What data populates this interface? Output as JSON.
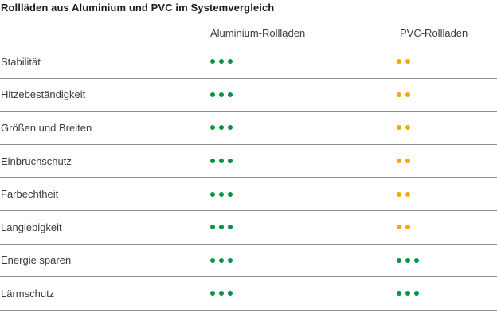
{
  "title": "Rollläden aus Aluminium und PVC im Systemvergleich",
  "colors": {
    "green": "#009640",
    "amber": "#F5A900",
    "rule": "#8f8f8f",
    "text": "#3b3b3b",
    "title": "#1c1c1c"
  },
  "header": {
    "col_aluminium": "Aluminium-Rollladen",
    "col_pvc": "PVC-Rollladen"
  },
  "chart_data": {
    "type": "table",
    "title": "Rollläden aus Aluminium und PVC im Systemvergleich",
    "columns": [
      "Aluminium-Rollladen",
      "PVC-Rollladen"
    ],
    "rating_scale": "dots, max 3 (3 dots = best)",
    "rows": [
      {
        "label": "Stabilität",
        "aluminium": {
          "dots": 3,
          "color": "green"
        },
        "pvc": {
          "dots": 2,
          "color": "amber"
        }
      },
      {
        "label": "Hitzebeständigkeit",
        "aluminium": {
          "dots": 3,
          "color": "green"
        },
        "pvc": {
          "dots": 2,
          "color": "amber"
        }
      },
      {
        "label": "Größen und Breiten",
        "aluminium": {
          "dots": 3,
          "color": "green"
        },
        "pvc": {
          "dots": 2,
          "color": "amber"
        }
      },
      {
        "label": "Einbruchschutz",
        "aluminium": {
          "dots": 3,
          "color": "green"
        },
        "pvc": {
          "dots": 2,
          "color": "amber"
        }
      },
      {
        "label": "Farbechtheit",
        "aluminium": {
          "dots": 3,
          "color": "green"
        },
        "pvc": {
          "dots": 2,
          "color": "amber"
        }
      },
      {
        "label": "Langlebigkeit",
        "aluminium": {
          "dots": 3,
          "color": "green"
        },
        "pvc": {
          "dots": 2,
          "color": "amber"
        }
      },
      {
        "label": "Energie sparen",
        "aluminium": {
          "dots": 3,
          "color": "green"
        },
        "pvc": {
          "dots": 3,
          "color": "green"
        }
      },
      {
        "label": "Lärmschutz",
        "aluminium": {
          "dots": 3,
          "color": "green"
        },
        "pvc": {
          "dots": 3,
          "color": "green"
        }
      }
    ],
    "series": [
      {
        "name": "Aluminium-Rollladen",
        "values": [
          3,
          3,
          3,
          3,
          3,
          3,
          3,
          3
        ]
      },
      {
        "name": "PVC-Rollladen",
        "values": [
          2,
          2,
          2,
          2,
          2,
          2,
          3,
          3
        ]
      }
    ],
    "categories": [
      "Stabilität",
      "Hitzebeständigkeit",
      "Größen und Breiten",
      "Einbruchschutz",
      "Farbechtheit",
      "Langlebigkeit",
      "Energie sparen",
      "Lärmschutz"
    ]
  }
}
